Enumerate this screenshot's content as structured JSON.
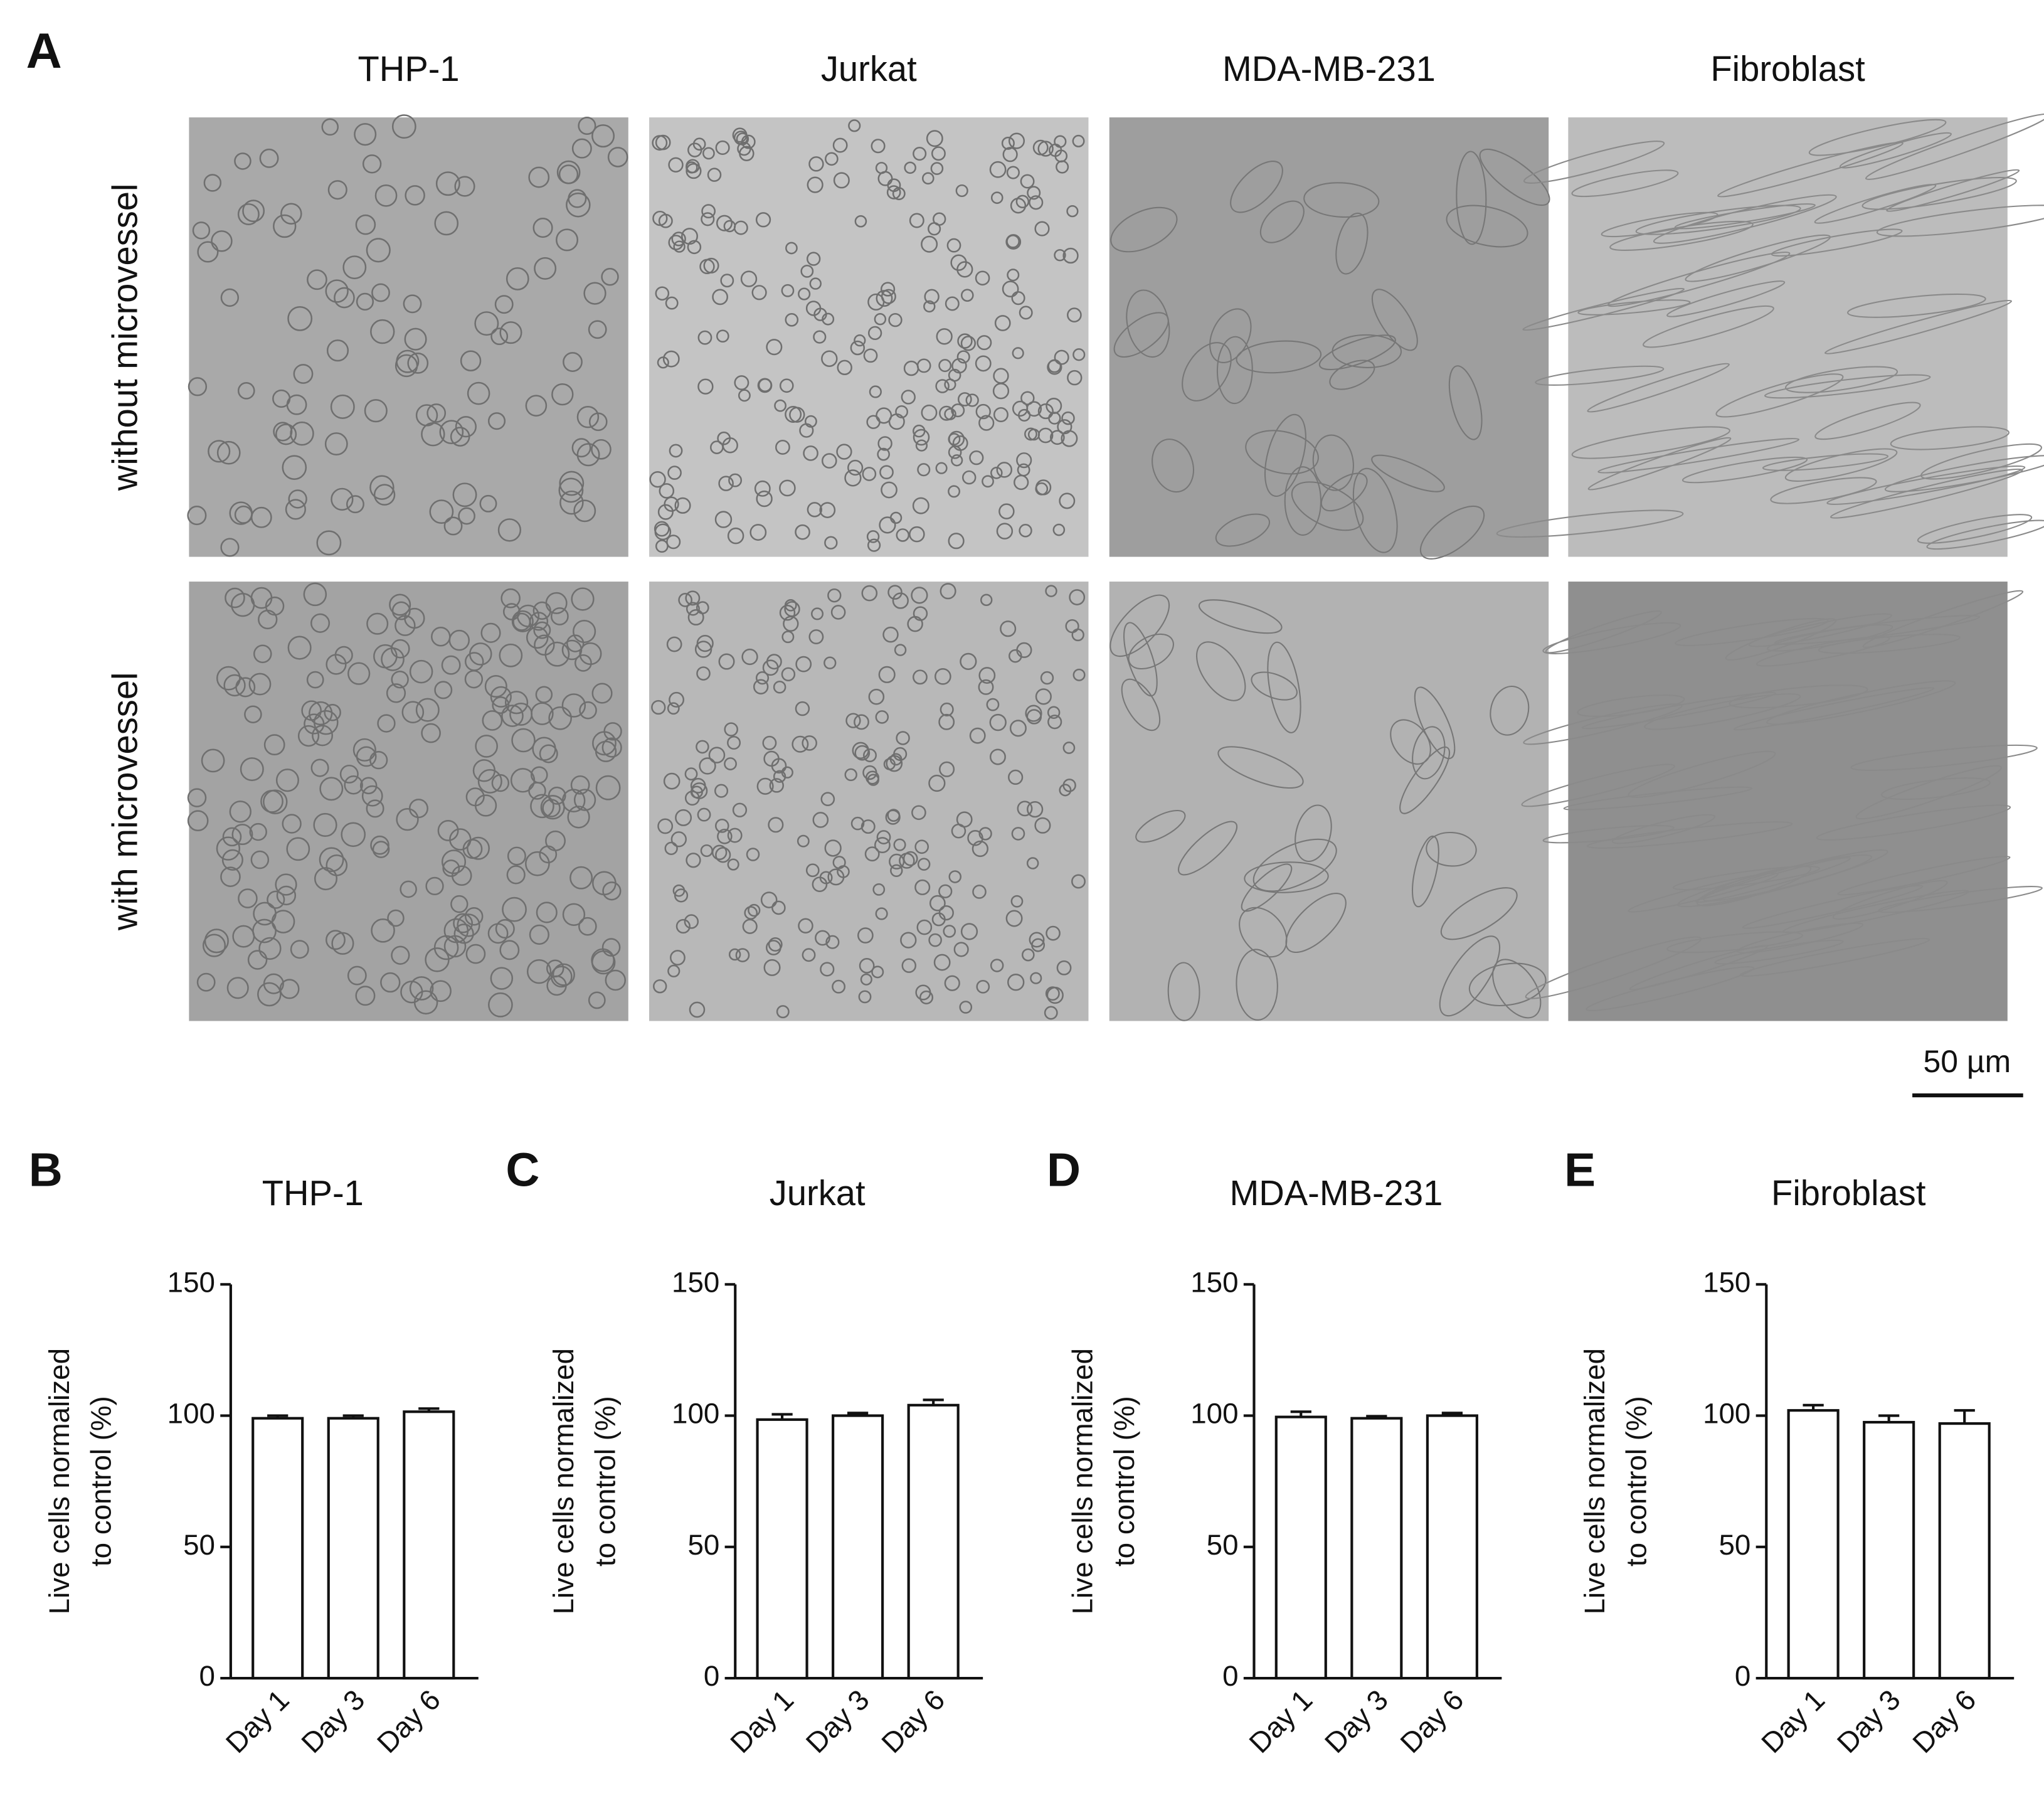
{
  "panel_a": {
    "label": "A",
    "columns": [
      "THP-1",
      "Jurkat",
      "MDA-MB-231",
      "Fibroblast"
    ],
    "rows": [
      "without microvessel",
      "with  microvessel"
    ],
    "scale_bar": "50 µm"
  },
  "chart_data": [
    {
      "type": "bar",
      "panel_label": "B",
      "title": "THP-1",
      "y_label": [
        "Live cells normalized",
        "to control (%)"
      ],
      "categories": [
        "Day 1",
        "Day 3",
        "Day 6"
      ],
      "values": [
        99,
        99,
        101.5
      ],
      "errors": [
        1,
        1,
        1.2
      ],
      "color": "#ffffff",
      "ylim": [
        0,
        150
      ],
      "yticks": [
        0,
        50,
        100,
        150
      ]
    },
    {
      "type": "bar",
      "panel_label": "C",
      "title": "Jurkat",
      "y_label": [
        "Live cells normalized",
        "to control (%)"
      ],
      "categories": [
        "Day 1",
        "Day 3",
        "Day 6"
      ],
      "values": [
        98.5,
        100,
        104
      ],
      "errors": [
        2,
        1,
        2
      ],
      "color": "#ffffff",
      "ylim": [
        0,
        150
      ],
      "yticks": [
        0,
        50,
        100,
        150
      ]
    },
    {
      "type": "bar",
      "panel_label": "D",
      "title": "MDA-MB-231",
      "y_label": [
        "Live cells normalized",
        "to control (%)"
      ],
      "categories": [
        "Day 1",
        "Day 3",
        "Day 6"
      ],
      "values": [
        99.5,
        99,
        100
      ],
      "errors": [
        2,
        0.8,
        1
      ],
      "color": "#ffffff",
      "ylim": [
        0,
        150
      ],
      "yticks": [
        0,
        50,
        100,
        150
      ]
    },
    {
      "type": "bar",
      "panel_label": "E",
      "title": "Fibroblast",
      "y_label": [
        "Live cells normalized",
        "to control (%)"
      ],
      "categories": [
        "Day 1",
        "Day 3",
        "Day 6"
      ],
      "values": [
        102,
        97.5,
        97
      ],
      "errors": [
        2,
        2.5,
        5
      ],
      "color": "#ffffff",
      "ylim": [
        0,
        150
      ],
      "yticks": [
        0,
        50,
        100,
        150
      ]
    }
  ]
}
